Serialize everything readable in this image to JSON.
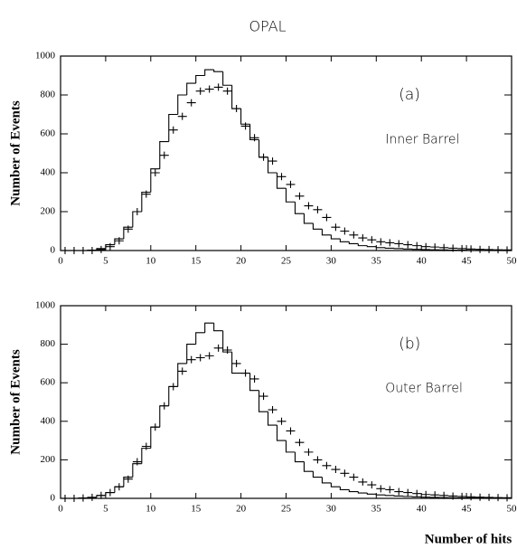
{
  "title": "OPAL",
  "chart_data": [
    {
      "type": "histogram",
      "ylabel": "Number of Events",
      "annotations": [
        "(a)",
        "Inner Barrel"
      ],
      "bins": [
        0,
        1,
        2,
        3,
        4,
        5,
        6,
        7,
        8,
        9,
        10,
        11,
        12,
        13,
        14,
        15,
        16,
        17,
        18,
        19,
        20,
        21,
        22,
        23,
        24,
        25,
        26,
        27,
        28,
        29,
        30,
        31,
        32,
        33,
        34,
        35,
        36,
        37,
        38,
        39,
        40,
        41,
        42,
        43,
        44,
        45,
        46,
        47,
        48,
        49,
        50
      ],
      "series": [
        {
          "style": "step",
          "color": "#000000",
          "values": [
            0,
            0,
            0,
            2,
            10,
            30,
            60,
            120,
            200,
            300,
            420,
            560,
            700,
            800,
            860,
            900,
            930,
            920,
            850,
            730,
            650,
            570,
            480,
            400,
            320,
            250,
            190,
            140,
            110,
            80,
            60,
            45,
            35,
            25,
            20,
            15,
            12,
            10,
            8,
            6,
            5,
            4,
            3,
            2,
            2,
            1,
            1,
            1,
            0,
            0
          ]
        },
        {
          "style": "points",
          "color": "#000000",
          "values": [
            0,
            0,
            0,
            0,
            5,
            20,
            50,
            110,
            200,
            290,
            400,
            490,
            620,
            690,
            760,
            820,
            830,
            840,
            820,
            730,
            640,
            580,
            480,
            460,
            380,
            340,
            280,
            230,
            210,
            170,
            120,
            100,
            80,
            65,
            55,
            45,
            40,
            35,
            30,
            25,
            20,
            18,
            15,
            12,
            10,
            8,
            6,
            5,
            4,
            3
          ]
        }
      ],
      "xlim": [
        0,
        50
      ],
      "ylim": [
        0,
        1000
      ],
      "xticks": [
        0,
        5,
        10,
        15,
        20,
        25,
        30,
        35,
        40,
        45,
        50
      ],
      "yticks": [
        0,
        200,
        400,
        600,
        800,
        1000
      ]
    },
    {
      "type": "histogram",
      "ylabel": "Number of Events",
      "xlabel": "Number of hits",
      "annotations": [
        "(b)",
        "Outer Barrel"
      ],
      "bins": [
        0,
        1,
        2,
        3,
        4,
        5,
        6,
        7,
        8,
        9,
        10,
        11,
        12,
        13,
        14,
        15,
        16,
        17,
        18,
        19,
        20,
        21,
        22,
        23,
        24,
        25,
        26,
        27,
        28,
        29,
        30,
        31,
        32,
        33,
        34,
        35,
        36,
        37,
        38,
        39,
        40,
        41,
        42,
        43,
        44,
        45,
        46,
        47,
        48,
        49,
        50
      ],
      "series": [
        {
          "style": "step",
          "color": "#000000",
          "values": [
            0,
            0,
            2,
            5,
            15,
            30,
            60,
            110,
            180,
            260,
            370,
            480,
            580,
            700,
            800,
            860,
            910,
            870,
            760,
            650,
            650,
            560,
            450,
            380,
            300,
            240,
            190,
            140,
            110,
            80,
            60,
            45,
            35,
            28,
            22,
            18,
            15,
            12,
            10,
            8,
            6,
            5,
            4,
            3,
            3,
            2,
            2,
            1,
            1,
            0
          ]
        },
        {
          "style": "points",
          "color": "#000000",
          "values": [
            0,
            0,
            2,
            5,
            15,
            30,
            60,
            100,
            190,
            270,
            370,
            480,
            580,
            660,
            720,
            730,
            740,
            780,
            770,
            700,
            650,
            620,
            530,
            460,
            400,
            350,
            290,
            240,
            200,
            170,
            150,
            130,
            110,
            85,
            70,
            50,
            45,
            35,
            30,
            25,
            20,
            18,
            15,
            12,
            10,
            8,
            6,
            5,
            4,
            3
          ]
        }
      ],
      "xlim": [
        0,
        50
      ],
      "ylim": [
        0,
        1000
      ],
      "xticks": [
        0,
        5,
        10,
        15,
        20,
        25,
        30,
        35,
        40,
        45,
        50
      ],
      "yticks": [
        0,
        200,
        400,
        600,
        800,
        1000
      ]
    }
  ]
}
